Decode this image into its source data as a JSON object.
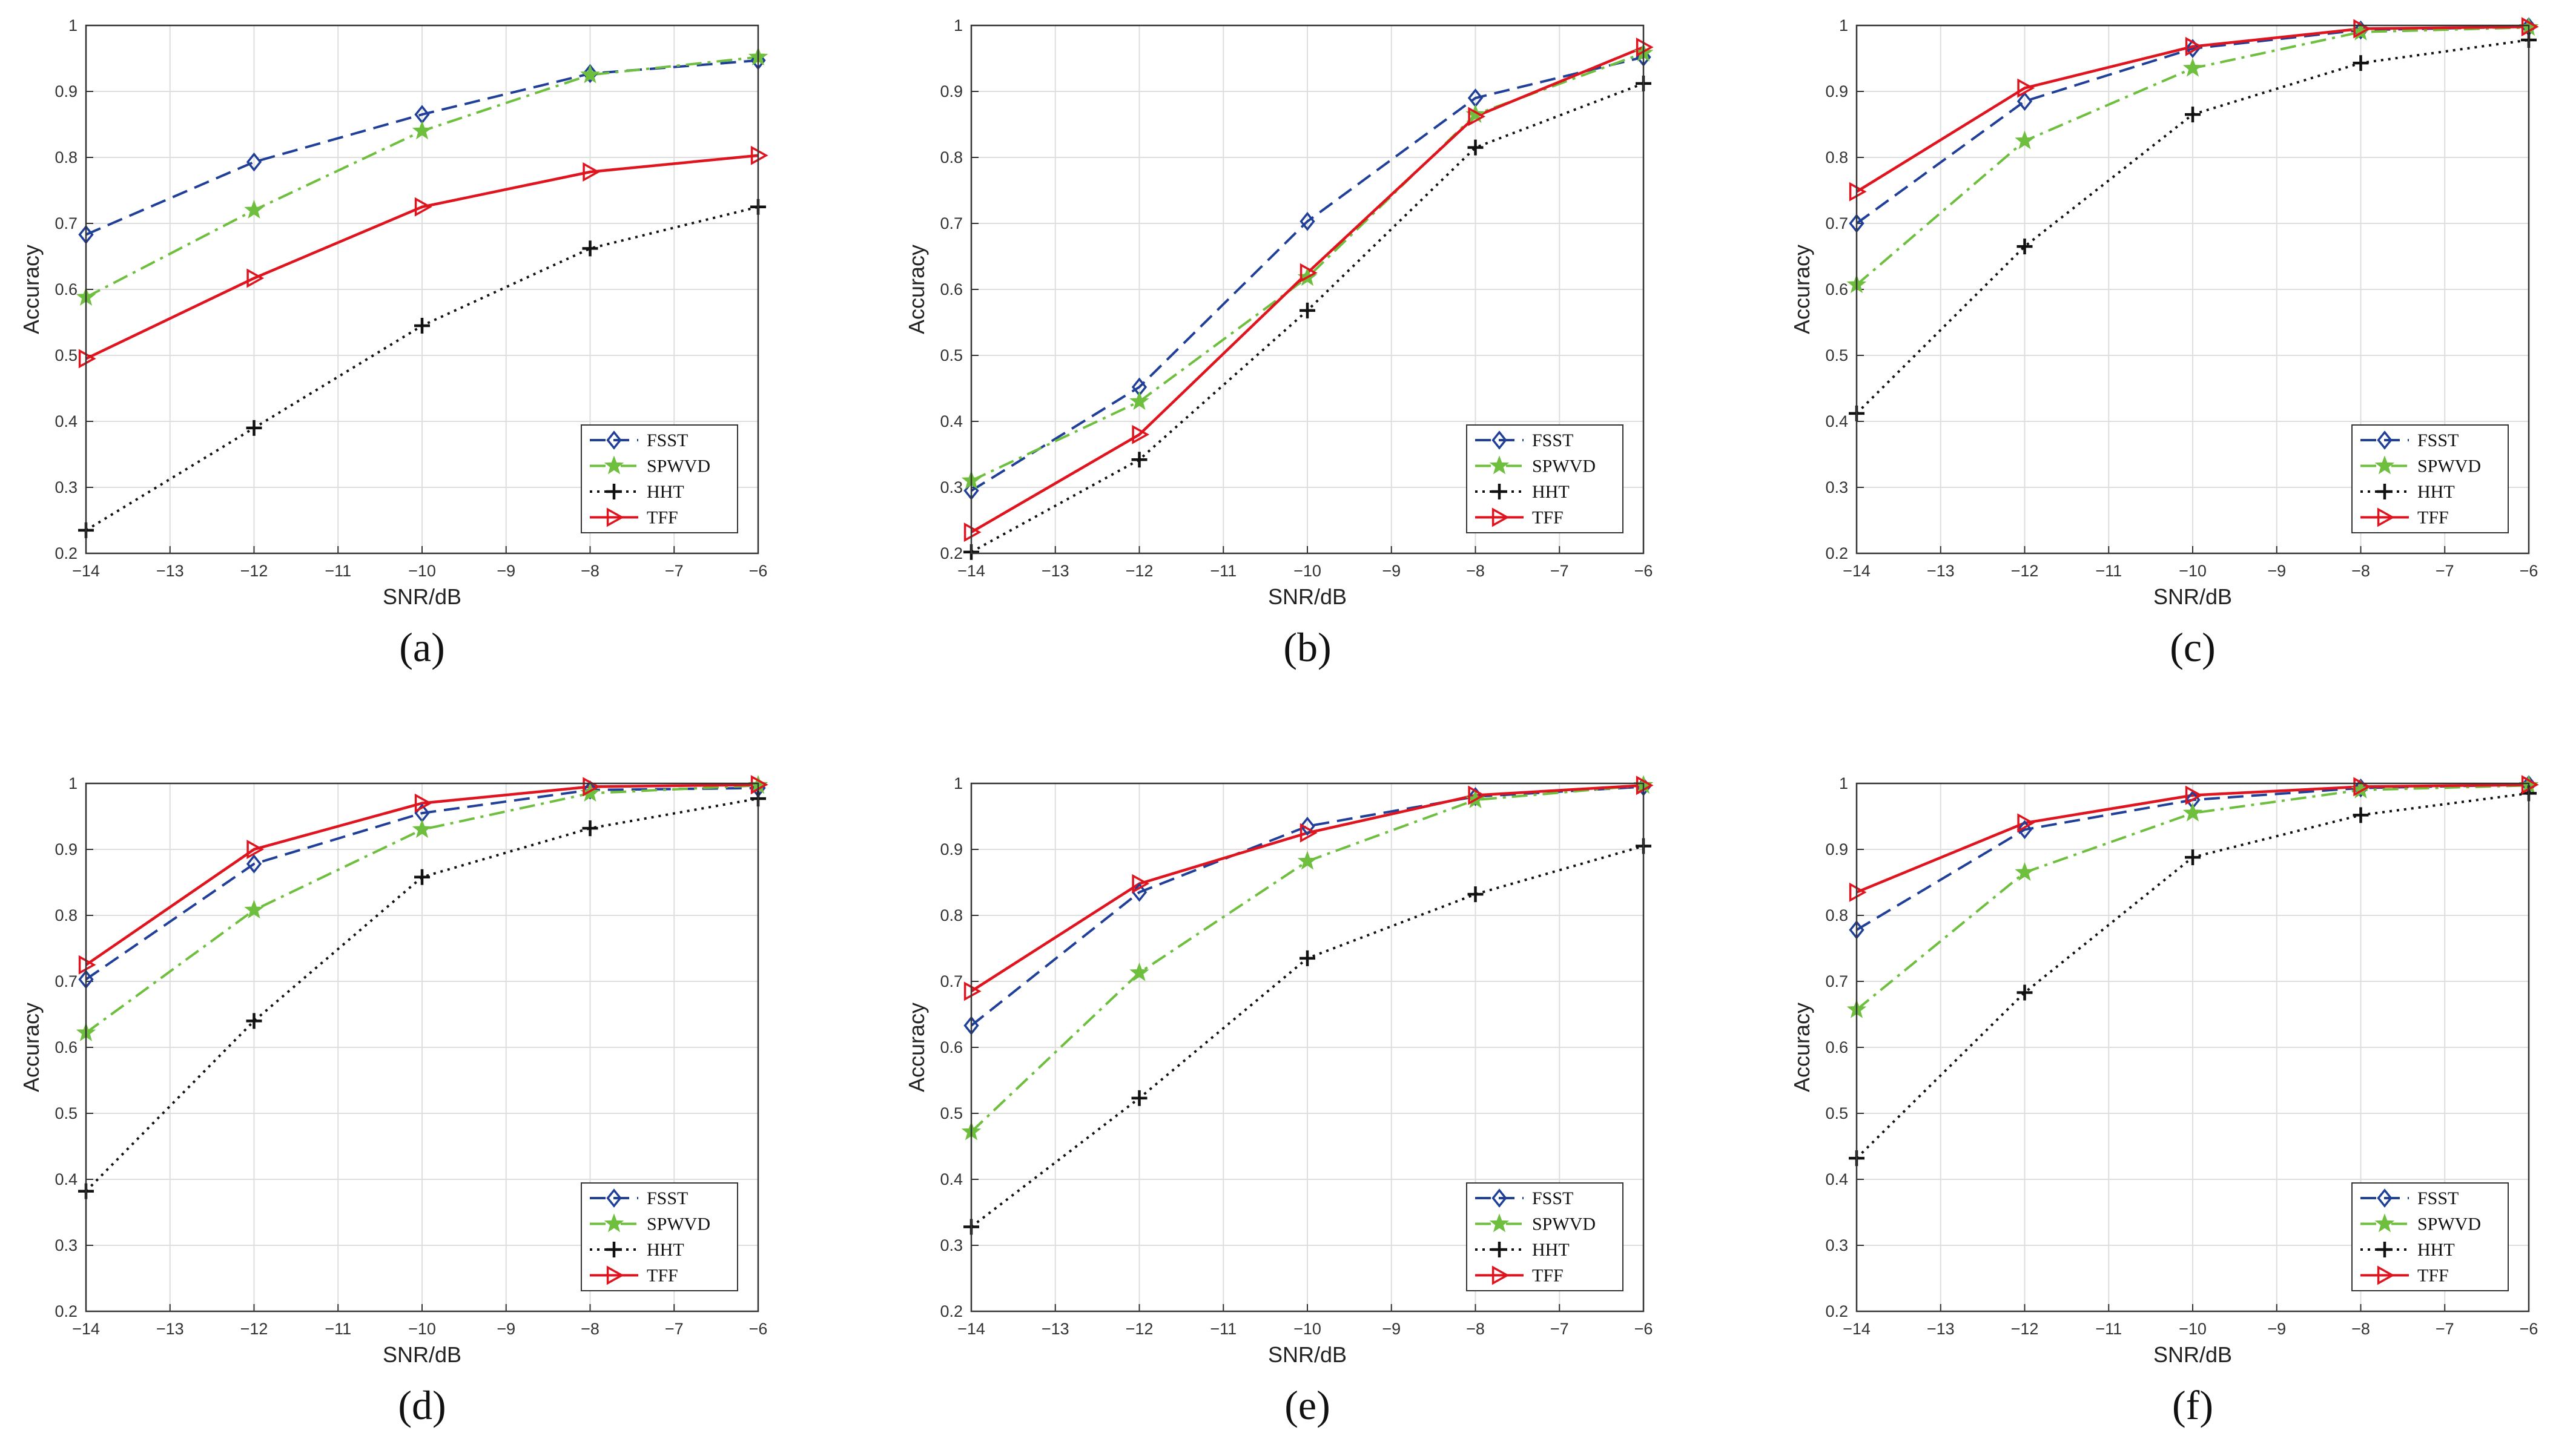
{
  "chart_data": [
    {
      "type": "line",
      "panel_label": "(a)",
      "xlabel": "SNR/dB",
      "ylabel": "Accuracy",
      "x": [
        -14,
        -12,
        -10,
        -8,
        -6
      ],
      "xticks": [
        -14,
        -13,
        -12,
        -11,
        -10,
        -9,
        -8,
        -7,
        -6
      ],
      "xlim": [
        -14,
        -6
      ],
      "ylim": [
        0.2,
        1
      ],
      "yticks": [
        0.2,
        0.3,
        0.4,
        0.5,
        0.6,
        0.7,
        0.8,
        0.9,
        1
      ],
      "grid": true,
      "legend": "bottom-right",
      "series": [
        {
          "name": "FSST",
          "color": "#1f3f99",
          "marker": "diamond",
          "dash": "dashed",
          "values": [
            0.683,
            0.793,
            0.865,
            0.927,
            0.947
          ]
        },
        {
          "name": "SPWVD",
          "color": "#6fbf3f",
          "marker": "star",
          "dash": "dashdot",
          "values": [
            0.588,
            0.72,
            0.84,
            0.925,
            0.952
          ]
        },
        {
          "name": "HHT",
          "color": "#111111",
          "marker": "plus",
          "dash": "dotted",
          "values": [
            0.235,
            0.39,
            0.545,
            0.662,
            0.725
          ]
        },
        {
          "name": "TFF",
          "color": "#e0141e",
          "marker": "triangle",
          "dash": "solid",
          "values": [
            0.495,
            0.617,
            0.725,
            0.778,
            0.803
          ]
        }
      ]
    },
    {
      "type": "line",
      "panel_label": "(b)",
      "xlabel": "SNR/dB",
      "ylabel": "Accuracy",
      "x": [
        -14,
        -12,
        -10,
        -8,
        -6
      ],
      "xticks": [
        -14,
        -13,
        -12,
        -11,
        -10,
        -9,
        -8,
        -7,
        -6
      ],
      "xlim": [
        -14,
        -6
      ],
      "ylim": [
        0.2,
        1
      ],
      "yticks": [
        0.2,
        0.3,
        0.4,
        0.5,
        0.6,
        0.7,
        0.8,
        0.9,
        1
      ],
      "grid": true,
      "legend": "bottom-right",
      "series": [
        {
          "name": "FSST",
          "color": "#1f3f99",
          "marker": "diamond",
          "dash": "dashed",
          "values": [
            0.295,
            0.452,
            0.703,
            0.89,
            0.952
          ]
        },
        {
          "name": "SPWVD",
          "color": "#6fbf3f",
          "marker": "star",
          "dash": "dashdot",
          "values": [
            0.31,
            0.43,
            0.618,
            0.865,
            0.958
          ]
        },
        {
          "name": "HHT",
          "color": "#111111",
          "marker": "plus",
          "dash": "dotted",
          "values": [
            0.202,
            0.342,
            0.568,
            0.815,
            0.912
          ]
        },
        {
          "name": "TFF",
          "color": "#e0141e",
          "marker": "triangle",
          "dash": "solid",
          "values": [
            0.232,
            0.38,
            0.625,
            0.862,
            0.967
          ]
        }
      ]
    },
    {
      "type": "line",
      "panel_label": "(c)",
      "xlabel": "SNR/dB",
      "ylabel": "Accuracy",
      "x": [
        -14,
        -12,
        -10,
        -8,
        -6
      ],
      "xticks": [
        -14,
        -13,
        -12,
        -11,
        -10,
        -9,
        -8,
        -7,
        -6
      ],
      "xlim": [
        -14,
        -6
      ],
      "ylim": [
        0.2,
        1
      ],
      "yticks": [
        0.2,
        0.3,
        0.4,
        0.5,
        0.6,
        0.7,
        0.8,
        0.9,
        1
      ],
      "grid": true,
      "legend": "bottom-right",
      "series": [
        {
          "name": "FSST",
          "color": "#1f3f99",
          "marker": "diamond",
          "dash": "dashed",
          "values": [
            0.7,
            0.885,
            0.965,
            0.993,
            0.998
          ]
        },
        {
          "name": "SPWVD",
          "color": "#6fbf3f",
          "marker": "star",
          "dash": "dashdot",
          "values": [
            0.607,
            0.825,
            0.935,
            0.99,
            0.997
          ]
        },
        {
          "name": "HHT",
          "color": "#111111",
          "marker": "plus",
          "dash": "dotted",
          "values": [
            0.412,
            0.665,
            0.865,
            0.943,
            0.978
          ]
        },
        {
          "name": "TFF",
          "color": "#e0141e",
          "marker": "triangle",
          "dash": "solid",
          "values": [
            0.748,
            0.905,
            0.968,
            0.995,
            0.998
          ]
        }
      ]
    },
    {
      "type": "line",
      "panel_label": "(d)",
      "xlabel": "SNR/dB",
      "ylabel": "Accuracy",
      "x": [
        -14,
        -12,
        -10,
        -8,
        -6
      ],
      "xticks": [
        -14,
        -13,
        -12,
        -11,
        -10,
        -9,
        -8,
        -7,
        -6
      ],
      "xlim": [
        -14,
        -6
      ],
      "ylim": [
        0.2,
        1
      ],
      "yticks": [
        0.2,
        0.3,
        0.4,
        0.5,
        0.6,
        0.7,
        0.8,
        0.9,
        1
      ],
      "grid": true,
      "legend": "bottom-right",
      "series": [
        {
          "name": "FSST",
          "color": "#1f3f99",
          "marker": "diamond",
          "dash": "dashed",
          "values": [
            0.703,
            0.878,
            0.955,
            0.99,
            0.993
          ]
        },
        {
          "name": "SPWVD",
          "color": "#6fbf3f",
          "marker": "star",
          "dash": "dashdot",
          "values": [
            0.622,
            0.808,
            0.93,
            0.985,
            0.997
          ]
        },
        {
          "name": "HHT",
          "color": "#111111",
          "marker": "plus",
          "dash": "dotted",
          "values": [
            0.382,
            0.64,
            0.858,
            0.932,
            0.977
          ]
        },
        {
          "name": "TFF",
          "color": "#e0141e",
          "marker": "triangle",
          "dash": "solid",
          "values": [
            0.725,
            0.9,
            0.97,
            0.995,
            0.998
          ]
        }
      ]
    },
    {
      "type": "line",
      "panel_label": "(e)",
      "xlabel": "SNR/dB",
      "ylabel": "Accuracy",
      "x": [
        -14,
        -12,
        -10,
        -8,
        -6
      ],
      "xticks": [
        -14,
        -13,
        -12,
        -11,
        -10,
        -9,
        -8,
        -7,
        -6
      ],
      "xlim": [
        -14,
        -6
      ],
      "ylim": [
        0.2,
        1
      ],
      "yticks": [
        0.2,
        0.3,
        0.4,
        0.5,
        0.6,
        0.7,
        0.8,
        0.9,
        1
      ],
      "grid": true,
      "legend": "bottom-right",
      "series": [
        {
          "name": "FSST",
          "color": "#1f3f99",
          "marker": "diamond",
          "dash": "dashed",
          "values": [
            0.633,
            0.835,
            0.935,
            0.98,
            0.995
          ]
        },
        {
          "name": "SPWVD",
          "color": "#6fbf3f",
          "marker": "star",
          "dash": "dashdot",
          "values": [
            0.472,
            0.713,
            0.882,
            0.975,
            0.997
          ]
        },
        {
          "name": "HHT",
          "color": "#111111",
          "marker": "plus",
          "dash": "dotted",
          "values": [
            0.328,
            0.523,
            0.735,
            0.832,
            0.905
          ]
        },
        {
          "name": "TFF",
          "color": "#e0141e",
          "marker": "triangle",
          "dash": "solid",
          "values": [
            0.685,
            0.848,
            0.925,
            0.982,
            0.997
          ]
        }
      ]
    },
    {
      "type": "line",
      "panel_label": "(f)",
      "xlabel": "SNR/dB",
      "ylabel": "Accuracy",
      "x": [
        -14,
        -12,
        -10,
        -8,
        -6
      ],
      "xticks": [
        -14,
        -13,
        -12,
        -11,
        -10,
        -9,
        -8,
        -7,
        -6
      ],
      "xlim": [
        -14,
        -6
      ],
      "ylim": [
        0.2,
        1
      ],
      "yticks": [
        0.2,
        0.3,
        0.4,
        0.5,
        0.6,
        0.7,
        0.8,
        0.9,
        1
      ],
      "grid": true,
      "legend": "bottom-right",
      "series": [
        {
          "name": "FSST",
          "color": "#1f3f99",
          "marker": "diamond",
          "dash": "dashed",
          "values": [
            0.778,
            0.93,
            0.975,
            0.993,
            0.998
          ]
        },
        {
          "name": "SPWVD",
          "color": "#6fbf3f",
          "marker": "star",
          "dash": "dashdot",
          "values": [
            0.657,
            0.865,
            0.955,
            0.99,
            0.997
          ]
        },
        {
          "name": "HHT",
          "color": "#111111",
          "marker": "plus",
          "dash": "dotted",
          "values": [
            0.432,
            0.683,
            0.888,
            0.952,
            0.985
          ]
        },
        {
          "name": "TFF",
          "color": "#e0141e",
          "marker": "triangle",
          "dash": "solid",
          "values": [
            0.835,
            0.94,
            0.982,
            0.995,
            0.998
          ]
        }
      ]
    }
  ]
}
